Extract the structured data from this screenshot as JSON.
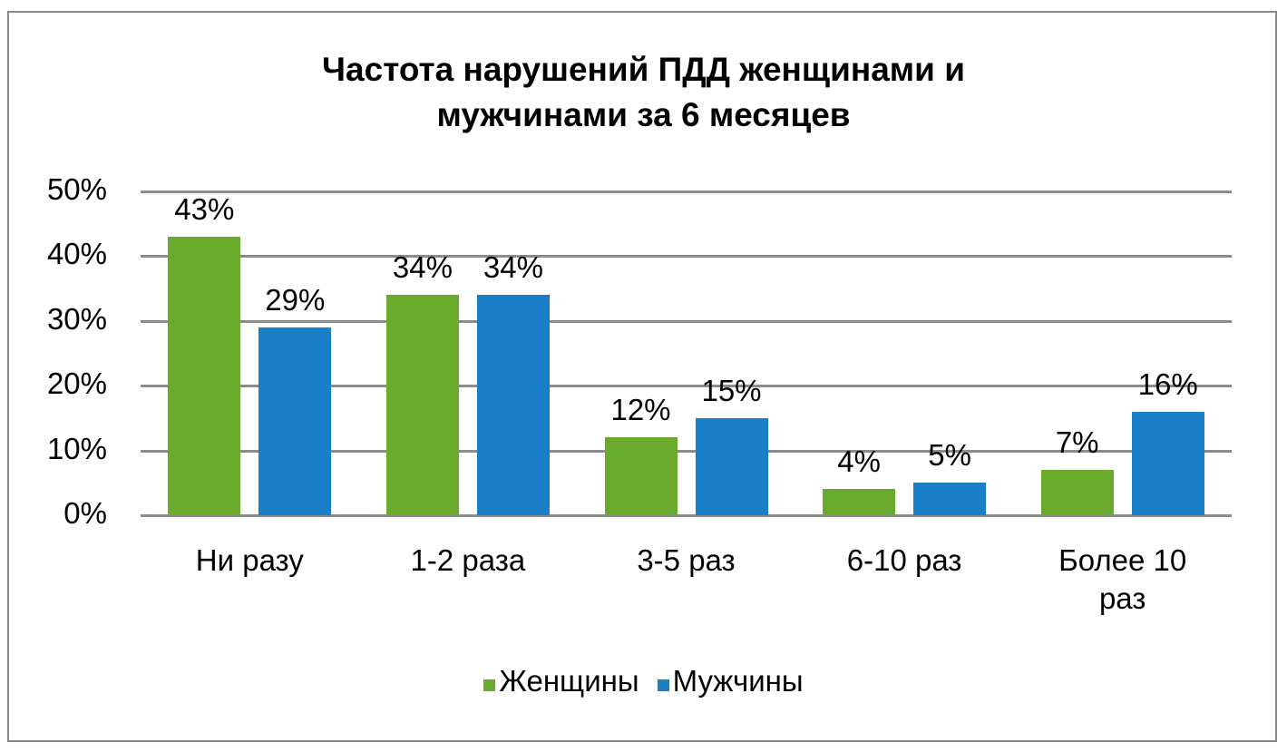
{
  "chart_data": {
    "type": "bar",
    "title": "Частота нарушений ПДД женщинами и мужчинами за 6 месяцев",
    "title_lines": [
      "Частота нарушений ПДД женщинами и",
      "мужчинами за 6 месяцев"
    ],
    "categories": [
      "Ни разу",
      "1-2 раза",
      "3-5 раз",
      "6-10 раз",
      "Более 10 раз"
    ],
    "category_lines": [
      [
        "Ни разу"
      ],
      [
        "1-2 раза"
      ],
      [
        "3-5 раз"
      ],
      [
        "6-10 раз"
      ],
      [
        "Более 10",
        "раз"
      ]
    ],
    "series": [
      {
        "name": "Женщины",
        "color": "#6aaa2c",
        "values": [
          43,
          34,
          12,
          4,
          7
        ],
        "labels": [
          "43%",
          "34%",
          "12%",
          "4%",
          "7%"
        ]
      },
      {
        "name": "Мужчины",
        "color": "#1a7fc6",
        "values": [
          29,
          34,
          15,
          5,
          16
        ],
        "labels": [
          "29%",
          "34%",
          "15%",
          "5%",
          "16%"
        ]
      }
    ],
    "xlabel": "",
    "ylabel": "",
    "ylim": [
      0,
      50
    ],
    "yticks": [
      "0%",
      "10%",
      "20%",
      "30%",
      "40%",
      "50%"
    ],
    "grid": true,
    "legend_position": "bottom"
  }
}
